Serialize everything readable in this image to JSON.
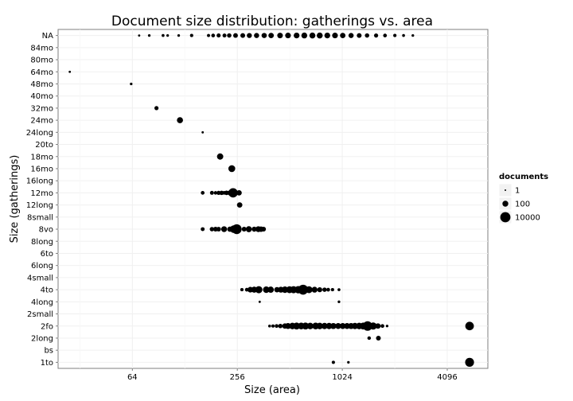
{
  "chart_data": {
    "type": "scatter",
    "title": "Document size distribution: gatherings vs. area",
    "xlabel": "Size (area)",
    "ylabel": "Size (gatherings)",
    "x_scale": "log2",
    "xlim": [
      24,
      7000
    ],
    "x_ticks": [
      64,
      256,
      1024,
      4096
    ],
    "x_tick_labels": [
      "64",
      "256",
      "1024",
      "4096"
    ],
    "categories": [
      "1to",
      "bs",
      "2long",
      "2fo",
      "2small",
      "4long",
      "4to",
      "4small",
      "6long",
      "6to",
      "8long",
      "8vo",
      "8small",
      "12long",
      "12mo",
      "16long",
      "16mo",
      "18mo",
      "20to",
      "24long",
      "24mo",
      "32mo",
      "40mo",
      "48mo",
      "64mo",
      "80mo",
      "84mo",
      "NA"
    ],
    "legend": {
      "title": "documents",
      "position": "right",
      "entries": [
        {
          "label": "1",
          "value": 1
        },
        {
          "label": "100",
          "value": 100
        },
        {
          "label": "10000",
          "value": 10000
        }
      ]
    },
    "grid": true,
    "points": [
      {
        "y": "NA",
        "x": 70,
        "n": 2
      },
      {
        "y": "NA",
        "x": 80,
        "n": 3
      },
      {
        "y": "NA",
        "x": 96,
        "n": 4
      },
      {
        "y": "NA",
        "x": 102,
        "n": 3
      },
      {
        "y": "NA",
        "x": 118,
        "n": 3
      },
      {
        "y": "NA",
        "x": 140,
        "n": 6
      },
      {
        "y": "NA",
        "x": 175,
        "n": 5
      },
      {
        "y": "NA",
        "x": 186,
        "n": 10
      },
      {
        "y": "NA",
        "x": 200,
        "n": 14
      },
      {
        "y": "NA",
        "x": 216,
        "n": 12
      },
      {
        "y": "NA",
        "x": 230,
        "n": 20
      },
      {
        "y": "NA",
        "x": 250,
        "n": 28
      },
      {
        "y": "NA",
        "x": 275,
        "n": 30
      },
      {
        "y": "NA",
        "x": 300,
        "n": 40
      },
      {
        "y": "NA",
        "x": 330,
        "n": 45
      },
      {
        "y": "NA",
        "x": 365,
        "n": 50
      },
      {
        "y": "NA",
        "x": 400,
        "n": 60
      },
      {
        "y": "NA",
        "x": 450,
        "n": 70
      },
      {
        "y": "NA",
        "x": 500,
        "n": 80
      },
      {
        "y": "NA",
        "x": 560,
        "n": 90
      },
      {
        "y": "NA",
        "x": 620,
        "n": 100
      },
      {
        "y": "NA",
        "x": 690,
        "n": 110
      },
      {
        "y": "NA",
        "x": 760,
        "n": 110
      },
      {
        "y": "NA",
        "x": 840,
        "n": 90
      },
      {
        "y": "NA",
        "x": 930,
        "n": 80
      },
      {
        "y": "NA",
        "x": 1030,
        "n": 60
      },
      {
        "y": "NA",
        "x": 1150,
        "n": 45
      },
      {
        "y": "NA",
        "x": 1280,
        "n": 30
      },
      {
        "y": "NA",
        "x": 1420,
        "n": 20
      },
      {
        "y": "NA",
        "x": 1600,
        "n": 15
      },
      {
        "y": "NA",
        "x": 1800,
        "n": 10
      },
      {
        "y": "NA",
        "x": 2050,
        "n": 6
      },
      {
        "y": "NA",
        "x": 2300,
        "n": 4
      },
      {
        "y": "NA",
        "x": 2600,
        "n": 3
      },
      {
        "y": "64mo",
        "x": 28,
        "n": 2
      },
      {
        "y": "48mo",
        "x": 63,
        "n": 3
      },
      {
        "y": "32mo",
        "x": 88,
        "n": 15
      },
      {
        "y": "24mo",
        "x": 120,
        "n": 120
      },
      {
        "y": "24long",
        "x": 162,
        "n": 2
      },
      {
        "y": "18mo",
        "x": 204,
        "n": 150
      },
      {
        "y": "16mo",
        "x": 238,
        "n": 280
      },
      {
        "y": "12mo",
        "x": 162,
        "n": 10
      },
      {
        "y": "12mo",
        "x": 183,
        "n": 12
      },
      {
        "y": "12mo",
        "x": 192,
        "n": 8
      },
      {
        "y": "12mo",
        "x": 200,
        "n": 15
      },
      {
        "y": "12mo",
        "x": 208,
        "n": 20
      },
      {
        "y": "12mo",
        "x": 215,
        "n": 10
      },
      {
        "y": "12mo",
        "x": 222,
        "n": 25
      },
      {
        "y": "12mo",
        "x": 232,
        "n": 40
      },
      {
        "y": "12mo",
        "x": 242,
        "n": 4000
      },
      {
        "y": "12mo",
        "x": 262,
        "n": 60
      },
      {
        "y": "12long",
        "x": 264,
        "n": 60
      },
      {
        "y": "8vo",
        "x": 162,
        "n": 12
      },
      {
        "y": "8vo",
        "x": 183,
        "n": 20
      },
      {
        "y": "8vo",
        "x": 192,
        "n": 30
      },
      {
        "y": "8vo",
        "x": 200,
        "n": 25
      },
      {
        "y": "8vo",
        "x": 215,
        "n": 100
      },
      {
        "y": "8vo",
        "x": 232,
        "n": 50
      },
      {
        "y": "8vo",
        "x": 244,
        "n": 600
      },
      {
        "y": "8vo",
        "x": 254,
        "n": 7000
      },
      {
        "y": "8vo",
        "x": 280,
        "n": 30
      },
      {
        "y": "8vo",
        "x": 298,
        "n": 120
      },
      {
        "y": "8vo",
        "x": 320,
        "n": 40
      },
      {
        "y": "8vo",
        "x": 338,
        "n": 100
      },
      {
        "y": "8vo",
        "x": 350,
        "n": 60
      },
      {
        "y": "8vo",
        "x": 362,
        "n": 30
      },
      {
        "y": "4to",
        "x": 272,
        "n": 6
      },
      {
        "y": "4to",
        "x": 290,
        "n": 10
      },
      {
        "y": "4to",
        "x": 304,
        "n": 80
      },
      {
        "y": "4to",
        "x": 320,
        "n": 120
      },
      {
        "y": "4to",
        "x": 340,
        "n": 400
      },
      {
        "y": "4to",
        "x": 375,
        "n": 200
      },
      {
        "y": "4to",
        "x": 398,
        "n": 150
      },
      {
        "y": "4to",
        "x": 432,
        "n": 60
      },
      {
        "y": "4to",
        "x": 455,
        "n": 100
      },
      {
        "y": "4to",
        "x": 480,
        "n": 200
      },
      {
        "y": "4to",
        "x": 510,
        "n": 300
      },
      {
        "y": "4to",
        "x": 538,
        "n": 400
      },
      {
        "y": "4to",
        "x": 572,
        "n": 500
      },
      {
        "y": "4to",
        "x": 610,
        "n": 8000
      },
      {
        "y": "4to",
        "x": 660,
        "n": 300
      },
      {
        "y": "4to",
        "x": 710,
        "n": 100
      },
      {
        "y": "4to",
        "x": 760,
        "n": 40
      },
      {
        "y": "4to",
        "x": 810,
        "n": 20
      },
      {
        "y": "4to",
        "x": 850,
        "n": 10
      },
      {
        "y": "4to",
        "x": 900,
        "n": 6
      },
      {
        "y": "4to",
        "x": 980,
        "n": 4
      },
      {
        "y": "4long",
        "x": 344,
        "n": 2
      },
      {
        "y": "4long",
        "x": 980,
        "n": 3
      },
      {
        "y": "2fo",
        "x": 392,
        "n": 4
      },
      {
        "y": "2fo",
        "x": 410,
        "n": 6
      },
      {
        "y": "2fo",
        "x": 430,
        "n": 10
      },
      {
        "y": "2fo",
        "x": 452,
        "n": 20
      },
      {
        "y": "2fo",
        "x": 480,
        "n": 60
      },
      {
        "y": "2fo",
        "x": 500,
        "n": 100
      },
      {
        "y": "2fo",
        "x": 530,
        "n": 200
      },
      {
        "y": "2fo",
        "x": 560,
        "n": 300
      },
      {
        "y": "2fo",
        "x": 595,
        "n": 250
      },
      {
        "y": "2fo",
        "x": 630,
        "n": 300
      },
      {
        "y": "2fo",
        "x": 670,
        "n": 200
      },
      {
        "y": "2fo",
        "x": 720,
        "n": 250
      },
      {
        "y": "2fo",
        "x": 760,
        "n": 200
      },
      {
        "y": "2fo",
        "x": 810,
        "n": 150
      },
      {
        "y": "2fo",
        "x": 860,
        "n": 150
      },
      {
        "y": "2fo",
        "x": 910,
        "n": 120
      },
      {
        "y": "2fo",
        "x": 970,
        "n": 100
      },
      {
        "y": "2fo",
        "x": 1030,
        "n": 100
      },
      {
        "y": "2fo",
        "x": 1090,
        "n": 100
      },
      {
        "y": "2fo",
        "x": 1150,
        "n": 120
      },
      {
        "y": "2fo",
        "x": 1210,
        "n": 150
      },
      {
        "y": "2fo",
        "x": 1280,
        "n": 200
      },
      {
        "y": "2fo",
        "x": 1350,
        "n": 300
      },
      {
        "y": "2fo",
        "x": 1430,
        "n": 5000
      },
      {
        "y": "2fo",
        "x": 1540,
        "n": 400
      },
      {
        "y": "2fo",
        "x": 1640,
        "n": 60
      },
      {
        "y": "2fo",
        "x": 1740,
        "n": 10
      },
      {
        "y": "2fo",
        "x": 1850,
        "n": 3
      },
      {
        "y": "2fo",
        "x": 5500,
        "n": 1800
      },
      {
        "y": "2long",
        "x": 1460,
        "n": 8
      },
      {
        "y": "2long",
        "x": 1650,
        "n": 30
      },
      {
        "y": "1to",
        "x": 910,
        "n": 6
      },
      {
        "y": "1to",
        "x": 1110,
        "n": 3
      },
      {
        "y": "1to",
        "x": 5500,
        "n": 2500
      }
    ]
  }
}
